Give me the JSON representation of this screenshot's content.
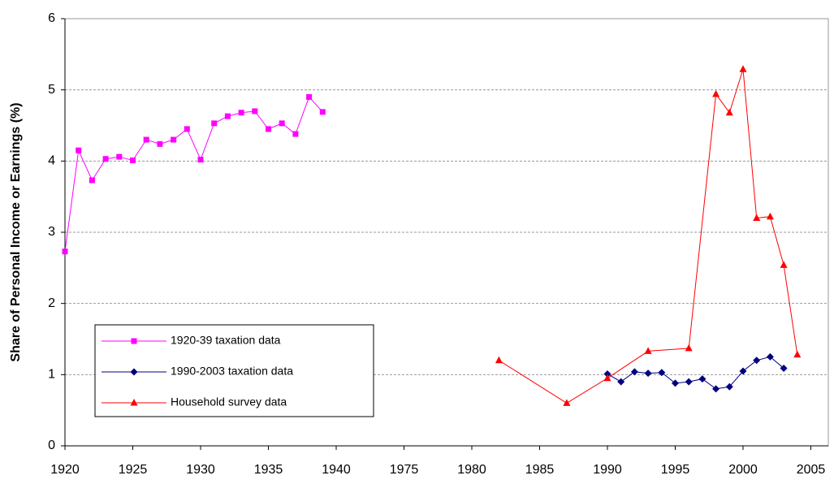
{
  "chart_data": {
    "type": "line",
    "y_label": "Share of Personal Income or Earnings (%)",
    "ylim": [
      0,
      6
    ],
    "yticks": [
      0,
      1,
      2,
      3,
      4,
      5,
      6
    ],
    "grid": true,
    "xlim": [
      1920,
      2005
    ],
    "xticks": [
      1920,
      1925,
      1930,
      1935,
      1940,
      1975,
      1980,
      1985,
      1990,
      1995,
      2000,
      2005
    ],
    "series": [
      {
        "name": "1920-39 taxation data",
        "color": "#ff00ff",
        "marker": "square",
        "x": [
          1920,
          1921,
          1922,
          1923,
          1924,
          1925,
          1926,
          1927,
          1928,
          1929,
          1930,
          1931,
          1932,
          1933,
          1934,
          1935,
          1936,
          1937,
          1938,
          1939
        ],
        "values": [
          2.73,
          4.15,
          3.73,
          4.03,
          4.06,
          4.01,
          4.3,
          4.24,
          4.3,
          4.45,
          4.02,
          4.53,
          4.63,
          4.68,
          4.7,
          4.45,
          4.53,
          4.38,
          4.9,
          4.69
        ]
      },
      {
        "name": "1990-2003 taxation data",
        "color": "#000080",
        "marker": "diamond",
        "x": [
          1990,
          1991,
          1992,
          1993,
          1994,
          1995,
          1996,
          1997,
          1998,
          1999,
          2000,
          2001,
          2002,
          2003
        ],
        "values": [
          1.01,
          0.9,
          1.04,
          1.02,
          1.03,
          0.88,
          0.9,
          0.94,
          0.8,
          0.83,
          1.05,
          1.2,
          1.25,
          1.09
        ]
      },
      {
        "name": "Household survey data",
        "color": "#ff0000",
        "marker": "triangle",
        "x": [
          1982,
          1987,
          1990,
          1993,
          1996,
          1998,
          1999,
          2000,
          2001,
          2002,
          2003,
          2004
        ],
        "values": [
          1.2,
          0.6,
          0.95,
          1.33,
          1.37,
          4.94,
          4.68,
          5.29,
          3.2,
          3.22,
          2.54,
          1.28
        ]
      }
    ]
  }
}
